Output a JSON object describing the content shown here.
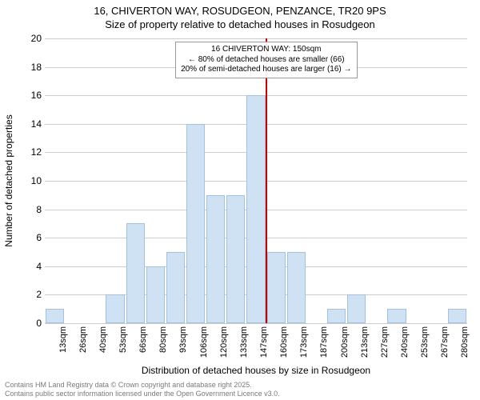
{
  "title_line1": "16, CHIVERTON WAY, ROSUDGEON, PENZANCE, TR20 9PS",
  "title_line2": "Size of property relative to detached houses in Rosudgeon",
  "yaxis_title": "Number of detached properties",
  "xaxis_title": "Distribution of detached houses by size in Rosudgeon",
  "chart": {
    "type": "histogram",
    "background_color": "#ffffff",
    "grid_color": "#cccccc",
    "bar_fill": "#cfe2f3",
    "bar_border": "#a4c2e0",
    "refline_color": "#cc0000",
    "title_fontsize": 13,
    "axis_label_fontsize": 12,
    "tick_fontsize": 12,
    "xtick_fontsize": 11,
    "legend_fontsize": 10,
    "footer_fontsize": 9,
    "footer_color": "#7a7a7a",
    "ylim": [
      0,
      20
    ],
    "ytick_step": 2,
    "yticks": [
      0,
      2,
      4,
      6,
      8,
      10,
      12,
      14,
      16,
      18,
      20
    ],
    "x_categories": [
      "13sqm",
      "26sqm",
      "40sqm",
      "53sqm",
      "66sqm",
      "80sqm",
      "93sqm",
      "106sqm",
      "120sqm",
      "133sqm",
      "147sqm",
      "160sqm",
      "173sqm",
      "187sqm",
      "200sqm",
      "213sqm",
      "227sqm",
      "240sqm",
      "253sqm",
      "267sqm",
      "280sqm"
    ],
    "values": [
      1,
      0,
      0,
      2,
      7,
      4,
      5,
      14,
      9,
      9,
      16,
      5,
      5,
      0,
      1,
      2,
      0,
      1,
      0,
      0,
      1
    ],
    "refline_after_index": 10,
    "legend": {
      "line1": "16 CHIVERTON WAY: 150sqm",
      "line2": "← 80% of detached houses are smaller (66)",
      "line3": "20% of semi-detached houses are larger (16) →",
      "anchor_index": 10
    }
  },
  "footer_line1": "Contains HM Land Registry data © Crown copyright and database right 2025.",
  "footer_line2": "Contains public sector information licensed under the Open Government Licence v3.0."
}
